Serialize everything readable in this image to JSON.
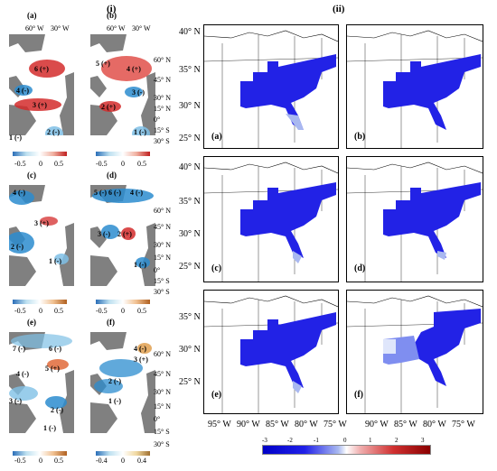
{
  "section_left": "(i)",
  "section_right": "(ii)",
  "left_panels": [
    {
      "letter": "(a)",
      "lon_ticks": [
        "60° W",
        "30° W"
      ],
      "lat_ticks": [
        "60° N",
        "45° N",
        "30° N",
        "15° N",
        "0°",
        "15° S",
        "30° S"
      ],
      "areas": [
        "6 (+)",
        "4 (-)",
        "3 (+)",
        "2 (-)",
        "1 (-)"
      ]
    },
    {
      "letter": "(b)",
      "lon_ticks": [
        "60° W",
        "30° W"
      ],
      "lat_ticks": [
        "60° N",
        "45° N",
        "30° N",
        "15° N",
        "0°",
        "15° S",
        "30° S"
      ],
      "areas": [
        "5 (+)",
        "4 (+)",
        "3 (-)",
        "2 (+)",
        "1 (-)"
      ]
    },
    {
      "letter": "(c)",
      "lon_ticks": [],
      "lat_ticks": [
        "60° N",
        "45° N",
        "30° N",
        "15° N",
        "0°",
        "15° S",
        "30° S"
      ],
      "areas": [
        "4 (-)",
        "3 (+)",
        "2 (-)",
        "1 (-)"
      ]
    },
    {
      "letter": "(d)",
      "lon_ticks": [],
      "lat_ticks": [
        "60° N",
        "45° N",
        "30° N",
        "15° N",
        "0°",
        "15° S",
        "30° S"
      ],
      "areas": [
        "5 (-)",
        "6 (-)",
        "4 (-)",
        "3 (-)",
        "2 (+)",
        "1 (-)"
      ]
    },
    {
      "letter": "(e)",
      "lon_ticks": [],
      "lat_ticks": [
        "60° N",
        "45° N",
        "30° N",
        "15° N",
        "0°",
        "15° S",
        "30° S"
      ],
      "areas": [
        "7 (-)",
        "6 (-)",
        "5 (+)",
        "4 (-)",
        "3 (-)",
        "2 (-)",
        "1 (-)"
      ]
    },
    {
      "letter": "(f)",
      "lon_ticks": [],
      "lat_ticks": [
        "60° N",
        "45° N",
        "30° N",
        "15° N",
        "0°",
        "15° S",
        "30° S"
      ],
      "areas": [
        "4 (-)",
        "3 (+)",
        "2 (-)",
        "1 (-)"
      ]
    }
  ],
  "left_colorbars": [
    {
      "ticks": [
        "-0.5",
        "0",
        "0.5"
      ]
    },
    {
      "ticks": [
        "-0.5",
        "0",
        "0.5"
      ]
    },
    {
      "ticks": [
        "-0.5",
        "0",
        "0.5"
      ]
    },
    {
      "ticks": [
        "-0.5",
        "0",
        "0.5"
      ]
    },
    {
      "ticks": [
        "-0.5",
        "0",
        "0.5"
      ]
    },
    {
      "ticks": [
        "-0.4",
        "0",
        "0.4"
      ]
    }
  ],
  "right_maps": [
    {
      "letter": "(a)"
    },
    {
      "letter": "(b)"
    },
    {
      "letter": "(c)"
    },
    {
      "letter": "(d)"
    },
    {
      "letter": "(e)"
    },
    {
      "letter": "(f)"
    }
  ],
  "right_lat_ticks": [
    "40° N",
    "35° N",
    "30° N",
    "25° N"
  ],
  "right_lon_ticks": [
    "95° W",
    "90° W",
    "85° W",
    "80° W",
    "75° W"
  ],
  "right_colorbar_ticks": [
    "-3",
    "-2",
    "-1",
    "0",
    "1",
    "2",
    "3"
  ],
  "colors": {
    "blue": "#2020e8",
    "light_blue": "#a9b8f0",
    "red": "#d42c2c",
    "land": "#808080"
  }
}
